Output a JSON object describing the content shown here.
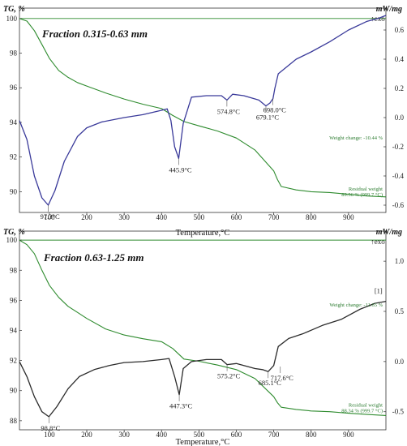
{
  "colors": {
    "tg_curve": "#2e8b2e",
    "panel1_dsc_curve": "#3a3a9a",
    "panel2_dsc_curve": "#2b2b2b",
    "reference_line": "#2e8b2e",
    "annotation_text": "#2e7d32"
  },
  "chart_data": [
    {
      "type": "line",
      "panel_label": "Fraction 0.315-0.63 mm",
      "ylabel_left": "TG, %",
      "ylabel_right": "mW/mg",
      "exo_label": "↑exo",
      "xlabel": "Temperature,°C",
      "xlim": [
        20,
        1000
      ],
      "ylim_left": [
        88.8,
        100.6
      ],
      "ylim_right": [
        -0.65,
        0.75
      ],
      "xticks": [
        100,
        200,
        300,
        400,
        500,
        600,
        700,
        800,
        900
      ],
      "xtick_labels": [
        "100",
        "200",
        "300",
        "400",
        "500",
        "600",
        "700",
        "800",
        "900"
      ],
      "yticks_left": [
        90,
        92,
        94,
        96,
        98,
        100
      ],
      "ytick_labels_left": [
        "90",
        "92",
        "94",
        "96",
        "98",
        "100"
      ],
      "yticks_right": [
        -0.6,
        -0.4,
        -0.2,
        0.0,
        0.2,
        0.4,
        0.6
      ],
      "ytick_labels_right": [
        "-0.6",
        "-0.4",
        "-0.2",
        "0.0",
        "0.2",
        "0.4",
        "0.6"
      ],
      "tg_reference_level": 100,
      "series": [
        {
          "axis": "left",
          "x": [
            20,
            40,
            60,
            80,
            100,
            125,
            150,
            175,
            200,
            250,
            300,
            350,
            400,
            430,
            460,
            500,
            550,
            600,
            650,
            700,
            710,
            720,
            760,
            800,
            850,
            900,
            950,
            1000
          ],
          "values": [
            100.0,
            99.85,
            99.3,
            98.5,
            97.7,
            97.0,
            96.6,
            96.3,
            96.1,
            95.7,
            95.35,
            95.05,
            94.8,
            94.4,
            94.05,
            93.8,
            93.5,
            93.1,
            92.4,
            91.2,
            90.7,
            90.3,
            90.1,
            90.0,
            89.95,
            89.85,
            89.75,
            89.7
          ]
        },
        {
          "axis": "right",
          "x": [
            20,
            40,
            60,
            80,
            97,
            115,
            140,
            175,
            200,
            240,
            300,
            350,
            400,
            415,
            425,
            435,
            445.9,
            458,
            480,
            520,
            560,
            574.8,
            590,
            620,
            660,
            679.1,
            690,
            698,
            703,
            712,
            760,
            800,
            850,
            900,
            950,
            980,
            1000
          ],
          "values": [
            -0.02,
            -0.15,
            -0.4,
            -0.55,
            -0.6,
            -0.5,
            -0.3,
            -0.13,
            -0.07,
            -0.03,
            0.0,
            0.02,
            0.05,
            0.06,
            -0.02,
            -0.2,
            -0.28,
            -0.04,
            0.14,
            0.15,
            0.15,
            0.12,
            0.16,
            0.15,
            0.12,
            0.08,
            0.1,
            0.13,
            0.2,
            0.3,
            0.4,
            0.45,
            0.52,
            0.6,
            0.66,
            0.68,
            0.7
          ]
        }
      ],
      "annotations": [
        {
          "text": "97.3°C",
          "x": 97.3,
          "y": -0.6
        },
        {
          "text": "445.9°C",
          "x": 445.9,
          "y": -0.28
        },
        {
          "text": "574.8°C",
          "x": 574.8,
          "y": 0.12
        },
        {
          "text": "679.1°C",
          "x": 679.1,
          "y": 0.08
        },
        {
          "text": "698.0°C",
          "x": 698.0,
          "y": 0.13
        }
      ],
      "notes": {
        "weight_change": "Weight change: -10.44 %",
        "residual_weight": "Residual weight",
        "residual_value": "89.56 % (999.7 °C)"
      }
    },
    {
      "type": "line",
      "panel_label": "Fraction 0.63-1.25 mm",
      "ylabel_left": "TG, %",
      "ylabel_right": "mW/mg",
      "exo_label": "↑exo",
      "step_label": "[1]",
      "xlabel": "Temperature,°C",
      "xlim": [
        20,
        1000
      ],
      "ylim_left": [
        87.4,
        100.6
      ],
      "ylim_right": [
        -0.68,
        1.3
      ],
      "xticks": [
        100,
        200,
        300,
        400,
        500,
        600,
        700,
        800,
        900
      ],
      "xtick_labels": [
        "100",
        "200",
        "300",
        "400",
        "500",
        "600",
        "700",
        "800",
        "900"
      ],
      "yticks_left": [
        88,
        90,
        92,
        94,
        96,
        98,
        100
      ],
      "ytick_labels_left": [
        "88",
        "90",
        "92",
        "94",
        "96",
        "98",
        "100"
      ],
      "yticks_right": [
        -0.5,
        0.0,
        0.5,
        1.0
      ],
      "ytick_labels_right": [
        "-0.5",
        "0.0",
        "0.5",
        "1.0"
      ],
      "tg_reference_level": 100,
      "series": [
        {
          "axis": "left",
          "x": [
            20,
            40,
            60,
            80,
            100,
            125,
            150,
            175,
            200,
            250,
            300,
            350,
            400,
            430,
            460,
            500,
            550,
            600,
            650,
            700,
            710,
            720,
            760,
            800,
            850,
            900,
            950,
            1000
          ],
          "values": [
            100.0,
            99.7,
            99.1,
            98.0,
            97.0,
            96.2,
            95.6,
            95.2,
            94.8,
            94.1,
            93.7,
            93.45,
            93.25,
            92.8,
            92.1,
            91.95,
            91.7,
            91.4,
            90.8,
            89.6,
            89.2,
            88.9,
            88.75,
            88.65,
            88.6,
            88.5,
            88.42,
            88.35
          ]
        },
        {
          "axis": "right",
          "x": [
            20,
            40,
            60,
            80,
            98.8,
            120,
            150,
            180,
            220,
            260,
            300,
            350,
            400,
            420,
            435,
            447.3,
            458,
            480,
            520,
            560,
            575.2,
            600,
            650,
            670,
            685.1,
            700,
            712,
            740,
            780,
            830,
            880,
            930,
            970,
            1000
          ],
          "values": [
            0.0,
            -0.15,
            -0.35,
            -0.5,
            -0.55,
            -0.45,
            -0.27,
            -0.15,
            -0.08,
            -0.04,
            -0.01,
            0.0,
            0.02,
            0.03,
            -0.15,
            -0.33,
            -0.07,
            0.0,
            0.02,
            0.02,
            -0.03,
            -0.02,
            -0.07,
            -0.08,
            -0.1,
            -0.04,
            0.15,
            0.23,
            0.28,
            0.36,
            0.42,
            0.52,
            0.58,
            0.6
          ]
        }
      ],
      "annotations": [
        {
          "text": "98.8°C",
          "x": 98.8,
          "y": -0.55
        },
        {
          "text": "447.3°C",
          "x": 447.3,
          "y": -0.33
        },
        {
          "text": "575.2°C",
          "x": 575.2,
          "y": -0.03
        },
        {
          "text": "685.1°C",
          "x": 685.1,
          "y": -0.1
        },
        {
          "text": "717.6°C",
          "x": 717.6,
          "y": -0.05
        }
      ],
      "notes": {
        "weight_change": "Weight change: -11.65 %",
        "residual_weight": "Residual weight",
        "residual_value": "88.34 % (999.7 °C)"
      }
    }
  ]
}
